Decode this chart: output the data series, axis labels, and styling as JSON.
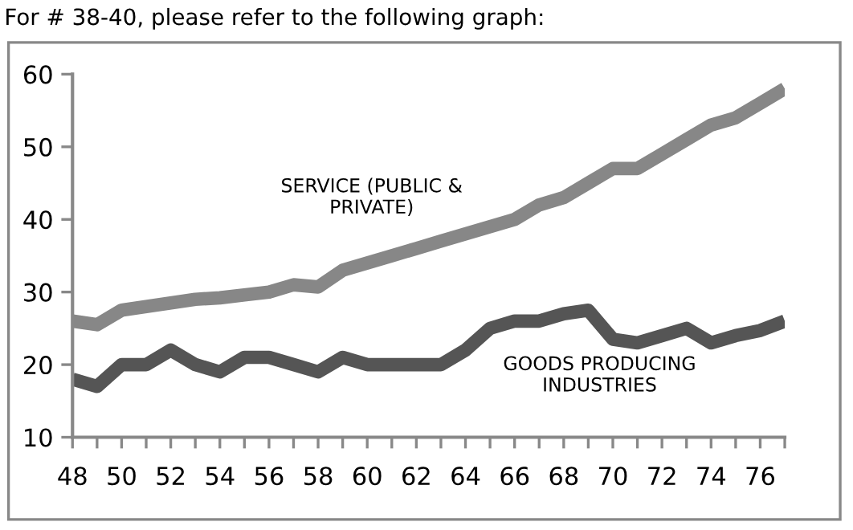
{
  "chart_data": {
    "type": "line",
    "title": "For # 38-40, please refer to the following graph:",
    "categories": [
      "48",
      null,
      "50",
      null,
      "52",
      null,
      "54",
      null,
      "56",
      null,
      "58",
      null,
      "60",
      null,
      "62",
      null,
      "64",
      null,
      "66",
      null,
      "68",
      null,
      "70",
      null,
      "72",
      null,
      "74",
      null,
      "76",
      null
    ],
    "series": [
      {
        "name": "SERVICE (PUBLIC & PRIVATE)",
        "color": "#878787",
        "values": [
          26,
          25.5,
          27.5,
          28,
          28.5,
          29,
          29.2,
          29.6,
          30,
          31,
          30.7,
          33,
          34,
          35,
          36,
          37,
          38,
          39,
          40,
          42,
          43,
          45,
          47,
          47,
          49,
          51,
          53,
          54,
          56,
          58
        ]
      },
      {
        "name": "GOODS PRODUCING INDUSTRIES",
        "color": "#555555",
        "values": [
          18,
          17,
          20,
          20,
          22,
          20,
          19,
          21,
          21,
          20,
          19,
          21,
          20,
          20,
          20,
          20,
          22,
          25,
          26,
          26,
          27,
          27.5,
          23.5,
          23,
          24,
          25,
          23,
          24,
          24.7,
          26
        ]
      }
    ],
    "ylim": [
      10,
      60
    ],
    "yticks": [
      10,
      20,
      30,
      40,
      50,
      60
    ],
    "grid": false,
    "legend": false,
    "marker": "none",
    "line_style": "solid"
  }
}
